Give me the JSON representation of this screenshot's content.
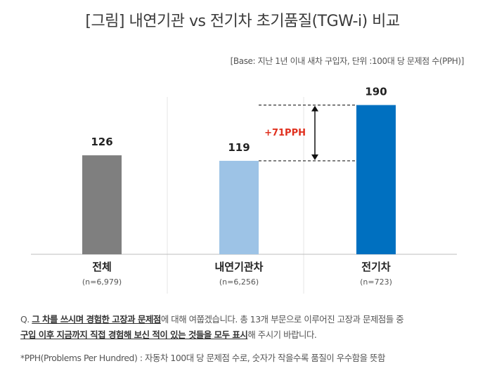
{
  "title": "[그림] 내연기관 vs 전기차 초기품질(TGW-i) 비교",
  "base_note": "[Base: 지난 1년 이내 새차 구입자, 단위 :100대 당 문제점 수(PPH)]",
  "chart_data": {
    "type": "bar",
    "title": "[그림] 내연기관 vs 전기차 초기품질(TGW-i) 비교",
    "unit": "100대 당 문제점 수(PPH)",
    "categories": [
      "전체",
      "내연기관차",
      "전기차"
    ],
    "sample_sizes": [
      "(n=6,979)",
      "(n=6,256)",
      "(n=723)"
    ],
    "values": [
      126,
      119,
      190
    ],
    "colors": [
      "#7f7f7f",
      "#9dc3e6",
      "#0070c0"
    ],
    "ylim": [
      0,
      220
    ],
    "annotation": {
      "text": "+71PPH",
      "from": 119,
      "to": 190,
      "color": "#e0301e"
    }
  },
  "question": {
    "prefix": "Q. ",
    "bold1": "그 차를 쓰시며 경험한 고장과 문제점",
    "mid1": "에 대해 여쭙겠습니다. 총 13개 부문으로 이루어진 고장과 문제점들 중",
    "bold2": "구입 이후 지금까지 직접 경험해 보신 적이 있는 것들을 모두 표시",
    "end": "해 주시기 바랍니다."
  },
  "pph_note": "*PPH(Problems Per Hundred) : 자동차 100대 당 문제점 수로, 숫자가 작을수록 품질이 우수함을 뜻함"
}
